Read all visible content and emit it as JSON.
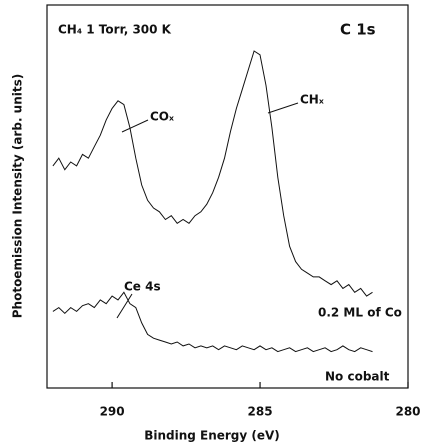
{
  "chart_data": {
    "type": "line",
    "x_label": "Binding Energy (eV)",
    "y_label": "Photoemission Intensity (arb. units)",
    "annotations": [
      "CH₄  1  Torr, 300 K",
      "C 1s",
      "COₓ",
      "CHₓ",
      "Ce 4s"
    ],
    "xlim": [
      292.2,
      280
    ],
    "xticks": [
      290,
      285,
      280
    ],
    "ylim": [
      0,
      100
    ],
    "x": [
      292.0,
      291.8,
      291.6,
      291.4,
      291.2,
      291.0,
      290.8,
      290.6,
      290.4,
      290.2,
      290.0,
      289.8,
      289.6,
      289.4,
      289.2,
      289.0,
      288.8,
      288.6,
      288.4,
      288.2,
      288.0,
      287.8,
      287.6,
      287.4,
      287.2,
      287.0,
      286.8,
      286.6,
      286.4,
      286.2,
      286.0,
      285.8,
      285.6,
      285.4,
      285.2,
      285.0,
      284.8,
      284.6,
      284.4,
      284.2,
      284.0,
      283.8,
      283.6,
      283.4,
      283.2,
      283.0,
      282.8,
      282.6,
      282.4,
      282.2,
      282.0,
      281.8,
      281.6,
      281.4,
      281.2
    ],
    "series": [
      {
        "name": "0.2 ML of Co",
        "color": "#111111",
        "values": [
          58,
          60,
          57,
          59,
          58,
          61,
          60,
          63,
          66,
          70,
          73,
          75,
          74,
          68,
          60,
          53,
          49,
          47,
          46,
          44,
          45,
          43,
          44,
          43,
          45,
          46,
          48,
          51,
          55,
          60,
          67,
          73,
          78,
          83,
          88,
          87,
          79,
          68,
          55,
          45,
          37,
          33,
          31,
          30,
          29,
          29,
          28,
          27,
          28,
          26,
          27,
          25,
          26,
          24,
          25
        ]
      },
      {
        "name": "No cobalt",
        "color": "#111111",
        "values": [
          20,
          21,
          19.5,
          21,
          20,
          21.5,
          22,
          21,
          23,
          22,
          24,
          23,
          25,
          22,
          21,
          17,
          14,
          13,
          12.5,
          12,
          11.5,
          12,
          11,
          11.5,
          10.5,
          11,
          10.5,
          11,
          10,
          11,
          10.5,
          10,
          11,
          10.5,
          10,
          11,
          10,
          10.5,
          9.5,
          10,
          10.5,
          9.5,
          10,
          10.5,
          9.5,
          10,
          10.5,
          9.5,
          10,
          11,
          10,
          9.5,
          10.5,
          10,
          9.5
        ]
      }
    ]
  }
}
